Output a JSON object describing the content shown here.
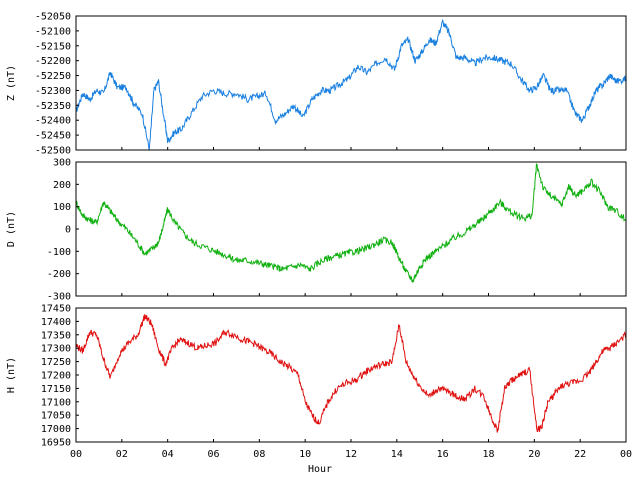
{
  "chart_data": [
    {
      "type": "line",
      "ylabel": "Z (nT)",
      "ylim": [
        -52500,
        -52050
      ],
      "yticks": [
        "-52050",
        "-52100",
        "-52150",
        "-52200",
        "-52250",
        "-52300",
        "-52350",
        "-52400",
        "-52450",
        "-52500"
      ],
      "xlim": [
        0,
        24
      ],
      "color": "#1a80e0",
      "x": [
        0.0,
        0.3,
        0.6,
        0.9,
        1.2,
        1.5,
        1.8,
        2.2,
        2.5,
        2.9,
        3.2,
        3.4,
        3.6,
        3.9,
        4.0,
        4.3,
        4.6,
        5.0,
        5.5,
        6.0,
        6.5,
        7.0,
        7.5,
        7.9,
        8.3,
        8.7,
        9.1,
        9.5,
        9.9,
        10.3,
        10.7,
        11.1,
        11.5,
        11.9,
        12.3,
        12.7,
        13.1,
        13.5,
        13.9,
        14.2,
        14.5,
        14.8,
        15.1,
        15.4,
        15.7,
        16.0,
        16.3,
        16.6,
        17.0,
        17.4,
        17.8,
        18.2,
        18.6,
        19.0,
        19.4,
        19.8,
        20.1,
        20.4,
        20.7,
        21.0,
        21.4,
        21.8,
        22.1,
        22.4,
        22.7,
        23.0,
        23.3,
        23.6,
        24.0
      ],
      "values": [
        -52370,
        -52310,
        -52330,
        -52300,
        -52310,
        -52240,
        -52290,
        -52290,
        -52340,
        -52380,
        -52500,
        -52300,
        -52270,
        -52420,
        -52470,
        -52440,
        -52430,
        -52380,
        -52320,
        -52300,
        -52310,
        -52310,
        -52330,
        -52320,
        -52310,
        -52400,
        -52380,
        -52350,
        -52390,
        -52330,
        -52300,
        -52300,
        -52280,
        -52260,
        -52220,
        -52240,
        -52210,
        -52190,
        -52230,
        -52150,
        -52130,
        -52200,
        -52170,
        -52130,
        -52140,
        -52070,
        -52110,
        -52190,
        -52190,
        -52210,
        -52190,
        -52190,
        -52200,
        -52210,
        -52260,
        -52300,
        -52290,
        -52250,
        -52300,
        -52300,
        -52300,
        -52380,
        -52400,
        -52350,
        -52300,
        -52280,
        -52250,
        -52270,
        -52260
      ]
    },
    {
      "type": "line",
      "ylabel": "D (nT)",
      "ylim": [
        -300,
        300
      ],
      "yticks": [
        "300",
        "200",
        "100",
        "0",
        "-100",
        "-200",
        "-300"
      ],
      "xlim": [
        0,
        24
      ],
      "color": "#10b010",
      "x": [
        0.0,
        0.3,
        0.6,
        0.9,
        1.2,
        1.5,
        1.8,
        2.2,
        2.6,
        3.0,
        3.3,
        3.6,
        3.8,
        4.0,
        4.3,
        4.7,
        5.1,
        5.6,
        6.1,
        6.6,
        7.0,
        7.4,
        7.9,
        8.3,
        8.7,
        9.0,
        9.4,
        9.8,
        10.2,
        10.6,
        11.0,
        11.4,
        11.8,
        12.2,
        12.6,
        13.0,
        13.4,
        13.8,
        14.1,
        14.4,
        14.7,
        15.0,
        15.3,
        15.7,
        16.1,
        16.5,
        16.9,
        17.3,
        17.7,
        18.1,
        18.5,
        18.8,
        19.2,
        19.6,
        19.9,
        20.1,
        20.4,
        20.8,
        21.2,
        21.5,
        21.8,
        22.1,
        22.5,
        22.9,
        23.2,
        23.6,
        24.0
      ],
      "values": [
        120,
        60,
        40,
        30,
        120,
        80,
        40,
        0,
        -50,
        -110,
        -90,
        -60,
        10,
        90,
        30,
        -20,
        -60,
        -80,
        -100,
        -120,
        -140,
        -140,
        -150,
        -160,
        -170,
        -180,
        -170,
        -160,
        -180,
        -150,
        -130,
        -120,
        -110,
        -100,
        -90,
        -70,
        -50,
        -60,
        -130,
        -190,
        -230,
        -170,
        -130,
        -100,
        -70,
        -40,
        -20,
        10,
        40,
        80,
        120,
        90,
        60,
        50,
        60,
        290,
        180,
        140,
        110,
        190,
        150,
        170,
        210,
        160,
        100,
        80,
        40
      ]
    },
    {
      "type": "line",
      "ylabel": "H (nT)",
      "xlabel": "Hour",
      "ylim": [
        16950,
        17450
      ],
      "yticks": [
        "17450",
        "17400",
        "17350",
        "17300",
        "17250",
        "17200",
        "17150",
        "17100",
        "17050",
        "17000",
        "16950"
      ],
      "xlim": [
        0,
        24
      ],
      "xticks": [
        "00",
        "02",
        "04",
        "06",
        "08",
        "10",
        "12",
        "14",
        "16",
        "18",
        "20",
        "22",
        "00"
      ],
      "color": "#e01010",
      "x": [
        0.0,
        0.3,
        0.6,
        0.9,
        1.2,
        1.5,
        1.9,
        2.3,
        2.7,
        3.0,
        3.3,
        3.6,
        3.9,
        4.2,
        4.5,
        4.9,
        5.3,
        5.7,
        6.1,
        6.5,
        6.9,
        7.3,
        7.7,
        8.1,
        8.5,
        8.9,
        9.3,
        9.7,
        10.0,
        10.3,
        10.6,
        11.0,
        11.4,
        11.8,
        12.2,
        12.6,
        13.0,
        13.4,
        13.8,
        14.1,
        14.4,
        14.7,
        15.0,
        15.4,
        15.8,
        16.2,
        16.6,
        17.0,
        17.4,
        17.8,
        18.1,
        18.4,
        18.7,
        19.0,
        19.4,
        19.8,
        20.1,
        20.3,
        20.6,
        20.9,
        21.2,
        21.6,
        22.0,
        22.4,
        22.7,
        23.0,
        23.3,
        23.6,
        24.0
      ],
      "values": [
        17310,
        17290,
        17360,
        17350,
        17260,
        17190,
        17280,
        17320,
        17350,
        17420,
        17390,
        17300,
        17240,
        17300,
        17330,
        17320,
        17300,
        17310,
        17320,
        17360,
        17350,
        17330,
        17320,
        17300,
        17280,
        17250,
        17230,
        17200,
        17100,
        17050,
        17020,
        17100,
        17150,
        17170,
        17180,
        17210,
        17230,
        17240,
        17250,
        17390,
        17250,
        17200,
        17160,
        17120,
        17150,
        17140,
        17120,
        17110,
        17150,
        17120,
        17050,
        16990,
        17150,
        17180,
        17200,
        17220,
        17000,
        17000,
        17100,
        17130,
        17160,
        17170,
        17180,
        17210,
        17250,
        17290,
        17300,
        17320,
        17350
      ]
    }
  ]
}
